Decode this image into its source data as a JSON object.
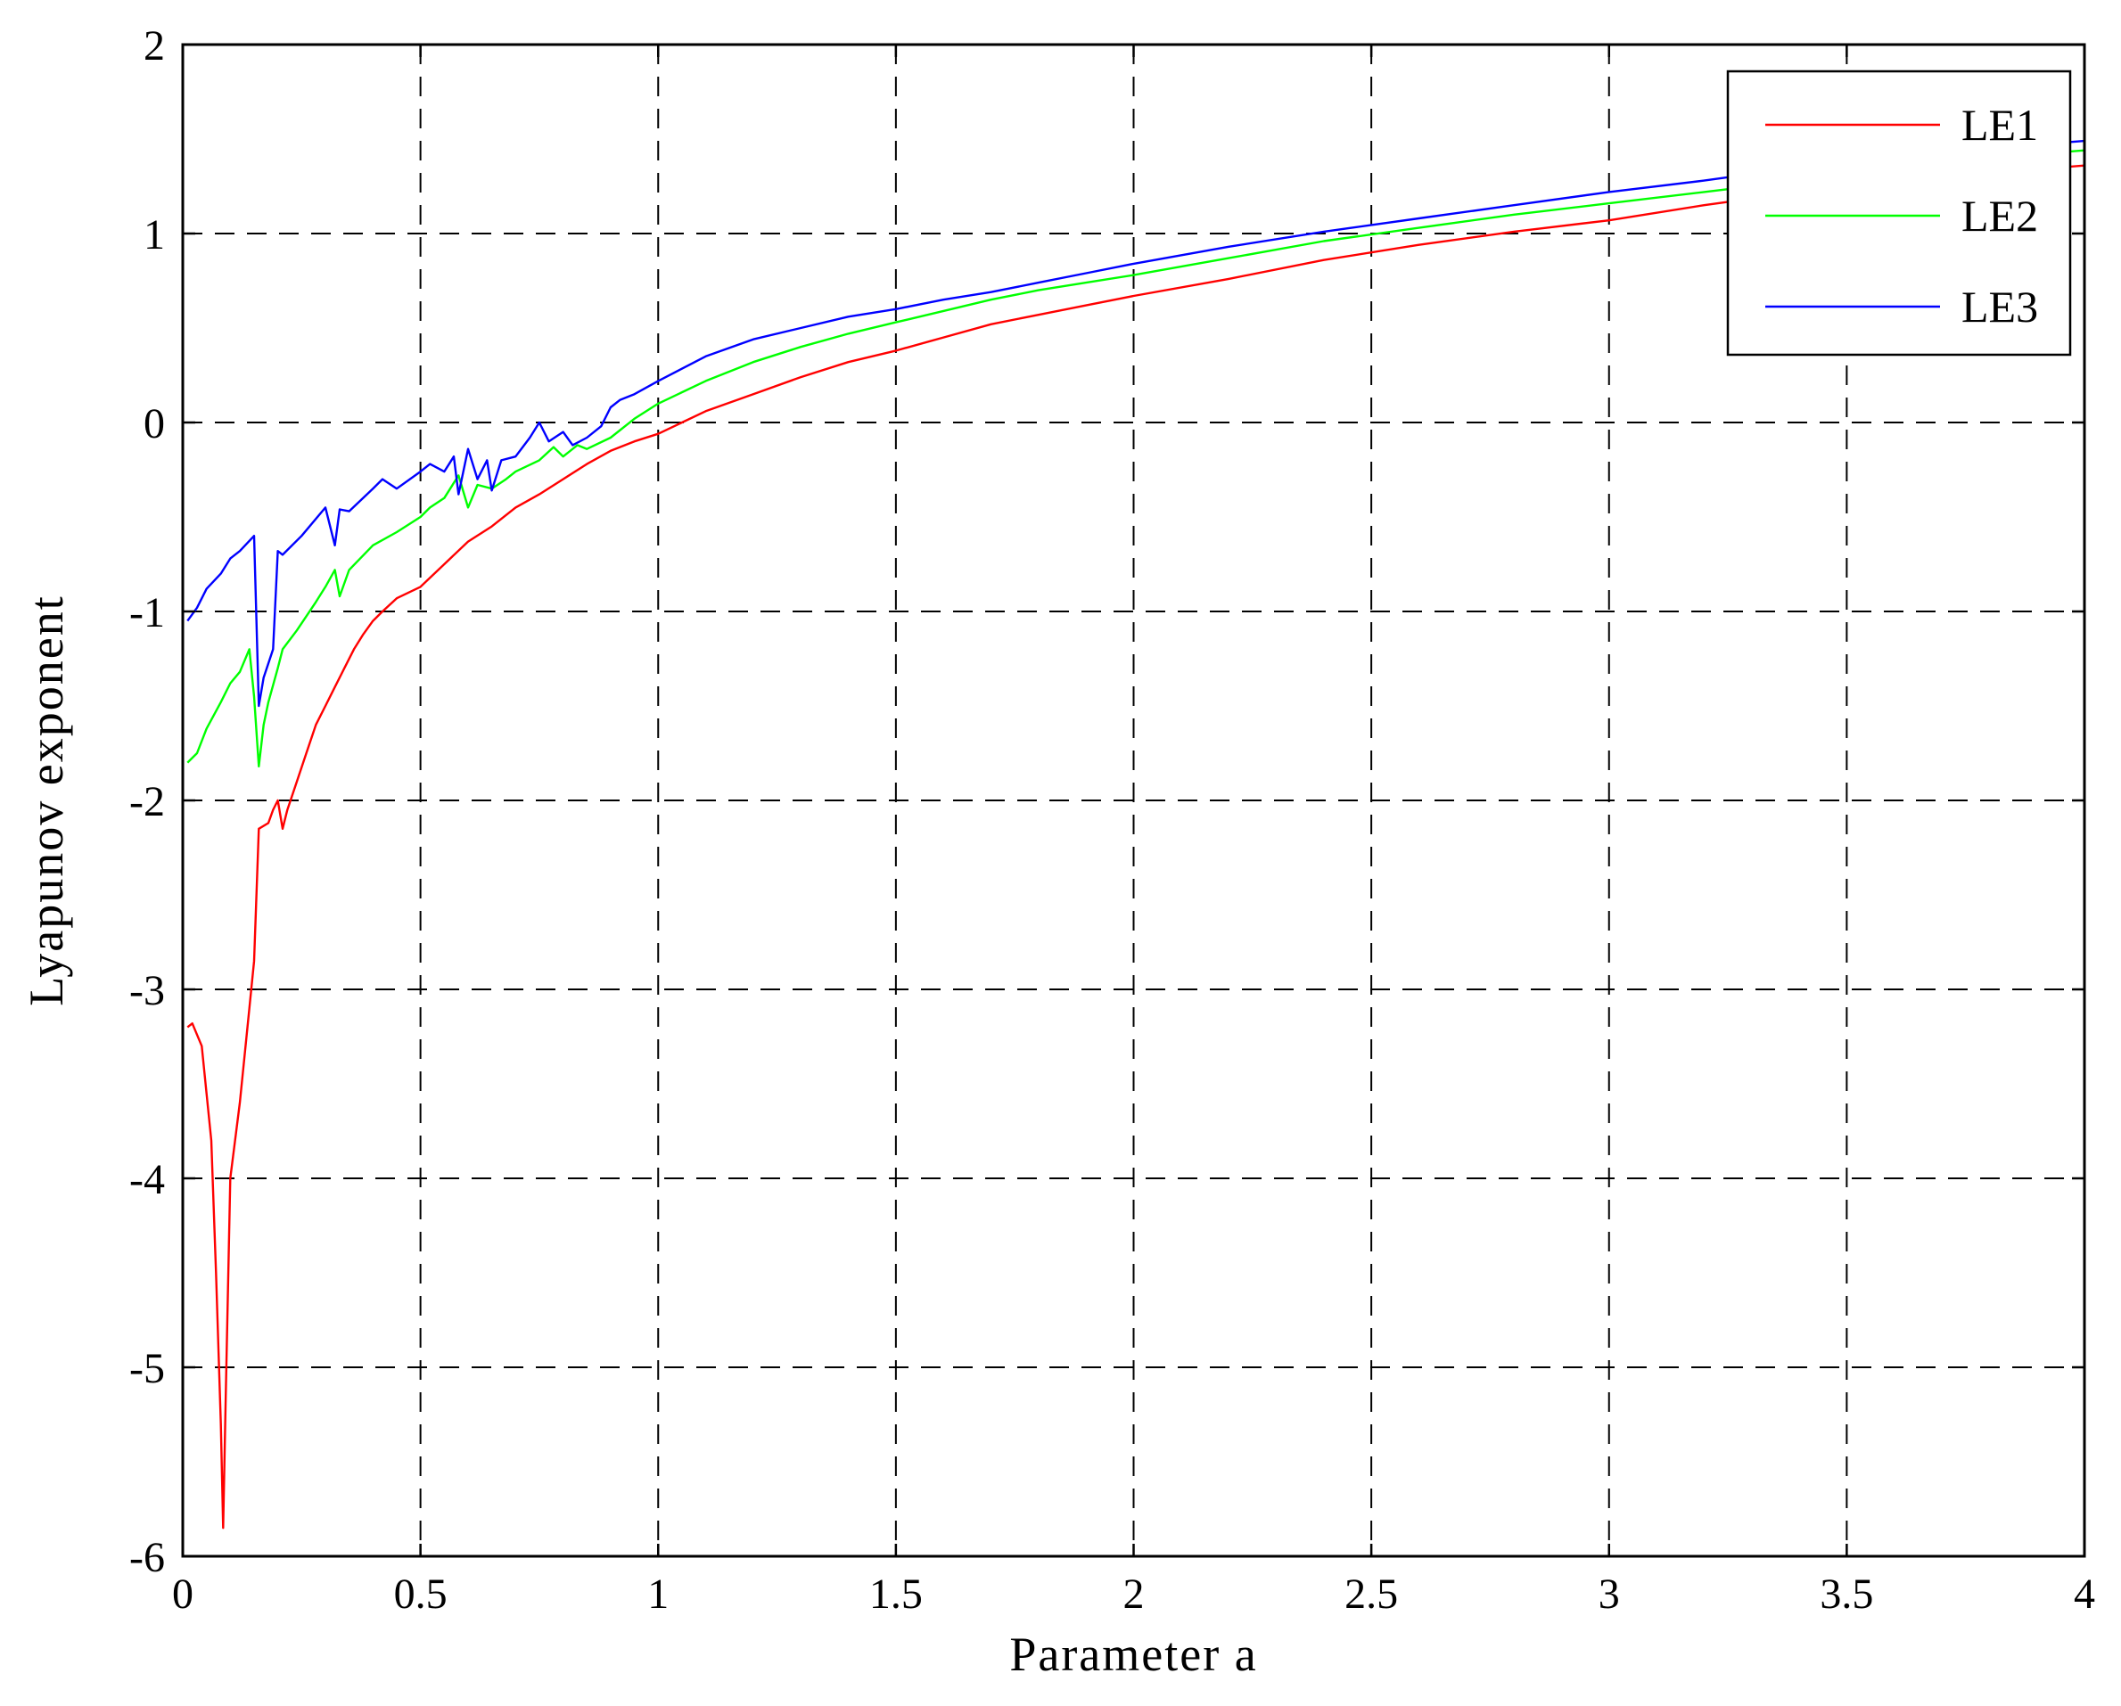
{
  "chart_data": {
    "type": "line",
    "title": "",
    "xlabel": "Parameter a",
    "ylabel": "Lyapunov exponent",
    "xlim": [
      0,
      4
    ],
    "ylim": [
      -6,
      2
    ],
    "xticks": [
      "0",
      "0.5",
      "1",
      "1.5",
      "2",
      "2.5",
      "3",
      "3.5",
      "4"
    ],
    "yticks": [
      "2",
      "1",
      "0",
      "-1",
      "-2",
      "-3",
      "-4",
      "-5",
      "-6"
    ],
    "grid": true,
    "legend_position": "top-right",
    "series": [
      {
        "name": "LE1",
        "color": "#ff0000",
        "x": [
          0.01,
          0.02,
          0.04,
          0.06,
          0.07,
          0.08,
          0.085,
          0.09,
          0.1,
          0.12,
          0.14,
          0.15,
          0.16,
          0.18,
          0.19,
          0.2,
          0.21,
          0.22,
          0.24,
          0.26,
          0.28,
          0.3,
          0.32,
          0.34,
          0.36,
          0.38,
          0.4,
          0.42,
          0.45,
          0.5,
          0.55,
          0.6,
          0.65,
          0.7,
          0.75,
          0.8,
          0.85,
          0.9,
          0.95,
          1.0,
          1.05,
          1.1,
          1.2,
          1.3,
          1.4,
          1.5,
          1.6,
          1.7,
          1.8,
          1.9,
          2.0,
          2.2,
          2.4,
          2.6,
          2.8,
          3.0,
          3.2,
          3.4,
          3.6,
          3.8,
          4.0
        ],
        "y": [
          -3.2,
          -3.18,
          -3.3,
          -3.8,
          -4.5,
          -5.3,
          -5.85,
          -5.2,
          -4.0,
          -3.6,
          -3.1,
          -2.85,
          -2.15,
          -2.12,
          -2.05,
          -2.0,
          -2.15,
          -2.05,
          -1.9,
          -1.75,
          -1.6,
          -1.5,
          -1.4,
          -1.3,
          -1.2,
          -1.12,
          -1.05,
          -1.0,
          -0.93,
          -0.87,
          -0.75,
          -0.63,
          -0.55,
          -0.45,
          -0.38,
          -0.3,
          -0.22,
          -0.15,
          -0.1,
          -0.06,
          0.0,
          0.06,
          0.15,
          0.24,
          0.32,
          0.38,
          0.45,
          0.52,
          0.57,
          0.62,
          0.67,
          0.76,
          0.86,
          0.94,
          1.01,
          1.07,
          1.15,
          1.22,
          1.28,
          1.32,
          1.36
        ]
      },
      {
        "name": "LE2",
        "color": "#00ff00",
        "x": [
          0.01,
          0.03,
          0.05,
          0.08,
          0.1,
          0.12,
          0.14,
          0.15,
          0.16,
          0.17,
          0.18,
          0.2,
          0.21,
          0.24,
          0.28,
          0.3,
          0.32,
          0.33,
          0.35,
          0.4,
          0.45,
          0.5,
          0.52,
          0.55,
          0.58,
          0.6,
          0.62,
          0.65,
          0.68,
          0.7,
          0.75,
          0.78,
          0.8,
          0.83,
          0.85,
          0.9,
          0.95,
          1.0,
          1.1,
          1.2,
          1.3,
          1.4,
          1.5,
          1.6,
          1.7,
          1.8,
          1.9,
          2.0,
          2.2,
          2.4,
          2.6,
          2.8,
          3.0,
          3.2,
          3.4,
          3.6,
          3.8,
          4.0
        ],
        "y": [
          -1.8,
          -1.75,
          -1.62,
          -1.48,
          -1.38,
          -1.32,
          -1.2,
          -1.45,
          -1.82,
          -1.6,
          -1.48,
          -1.3,
          -1.2,
          -1.1,
          -0.95,
          -0.87,
          -0.78,
          -0.92,
          -0.78,
          -0.65,
          -0.58,
          -0.5,
          -0.45,
          -0.4,
          -0.28,
          -0.45,
          -0.33,
          -0.35,
          -0.3,
          -0.26,
          -0.2,
          -0.13,
          -0.18,
          -0.12,
          -0.14,
          -0.08,
          0.02,
          0.1,
          0.22,
          0.32,
          0.4,
          0.47,
          0.53,
          0.59,
          0.65,
          0.7,
          0.74,
          0.78,
          0.87,
          0.96,
          1.03,
          1.1,
          1.16,
          1.22,
          1.28,
          1.34,
          1.4,
          1.44
        ]
      },
      {
        "name": "LE3",
        "color": "#0000ff",
        "x": [
          0.01,
          0.03,
          0.05,
          0.08,
          0.1,
          0.12,
          0.15,
          0.16,
          0.17,
          0.19,
          0.2,
          0.21,
          0.25,
          0.3,
          0.32,
          0.33,
          0.35,
          0.4,
          0.42,
          0.45,
          0.5,
          0.52,
          0.55,
          0.57,
          0.58,
          0.6,
          0.62,
          0.64,
          0.65,
          0.67,
          0.7,
          0.73,
          0.75,
          0.77,
          0.8,
          0.82,
          0.85,
          0.88,
          0.9,
          0.92,
          0.95,
          1.0,
          1.1,
          1.2,
          1.3,
          1.4,
          1.5,
          1.6,
          1.7,
          1.8,
          1.9,
          2.0,
          2.2,
          2.4,
          2.6,
          2.8,
          3.0,
          3.2,
          3.4,
          3.6,
          3.8,
          4.0
        ],
        "y": [
          -1.05,
          -0.98,
          -0.88,
          -0.8,
          -0.72,
          -0.68,
          -0.6,
          -1.5,
          -1.35,
          -1.2,
          -0.68,
          -0.7,
          -0.6,
          -0.45,
          -0.65,
          -0.46,
          -0.47,
          -0.35,
          -0.3,
          -0.35,
          -0.26,
          -0.22,
          -0.26,
          -0.18,
          -0.38,
          -0.14,
          -0.3,
          -0.2,
          -0.36,
          -0.2,
          -0.18,
          -0.08,
          0.0,
          -0.1,
          -0.05,
          -0.12,
          -0.08,
          -0.02,
          0.08,
          0.12,
          0.15,
          0.22,
          0.35,
          0.44,
          0.5,
          0.56,
          0.6,
          0.65,
          0.69,
          0.74,
          0.79,
          0.84,
          0.93,
          1.01,
          1.08,
          1.15,
          1.22,
          1.28,
          1.35,
          1.4,
          1.45,
          1.49
        ]
      }
    ]
  }
}
